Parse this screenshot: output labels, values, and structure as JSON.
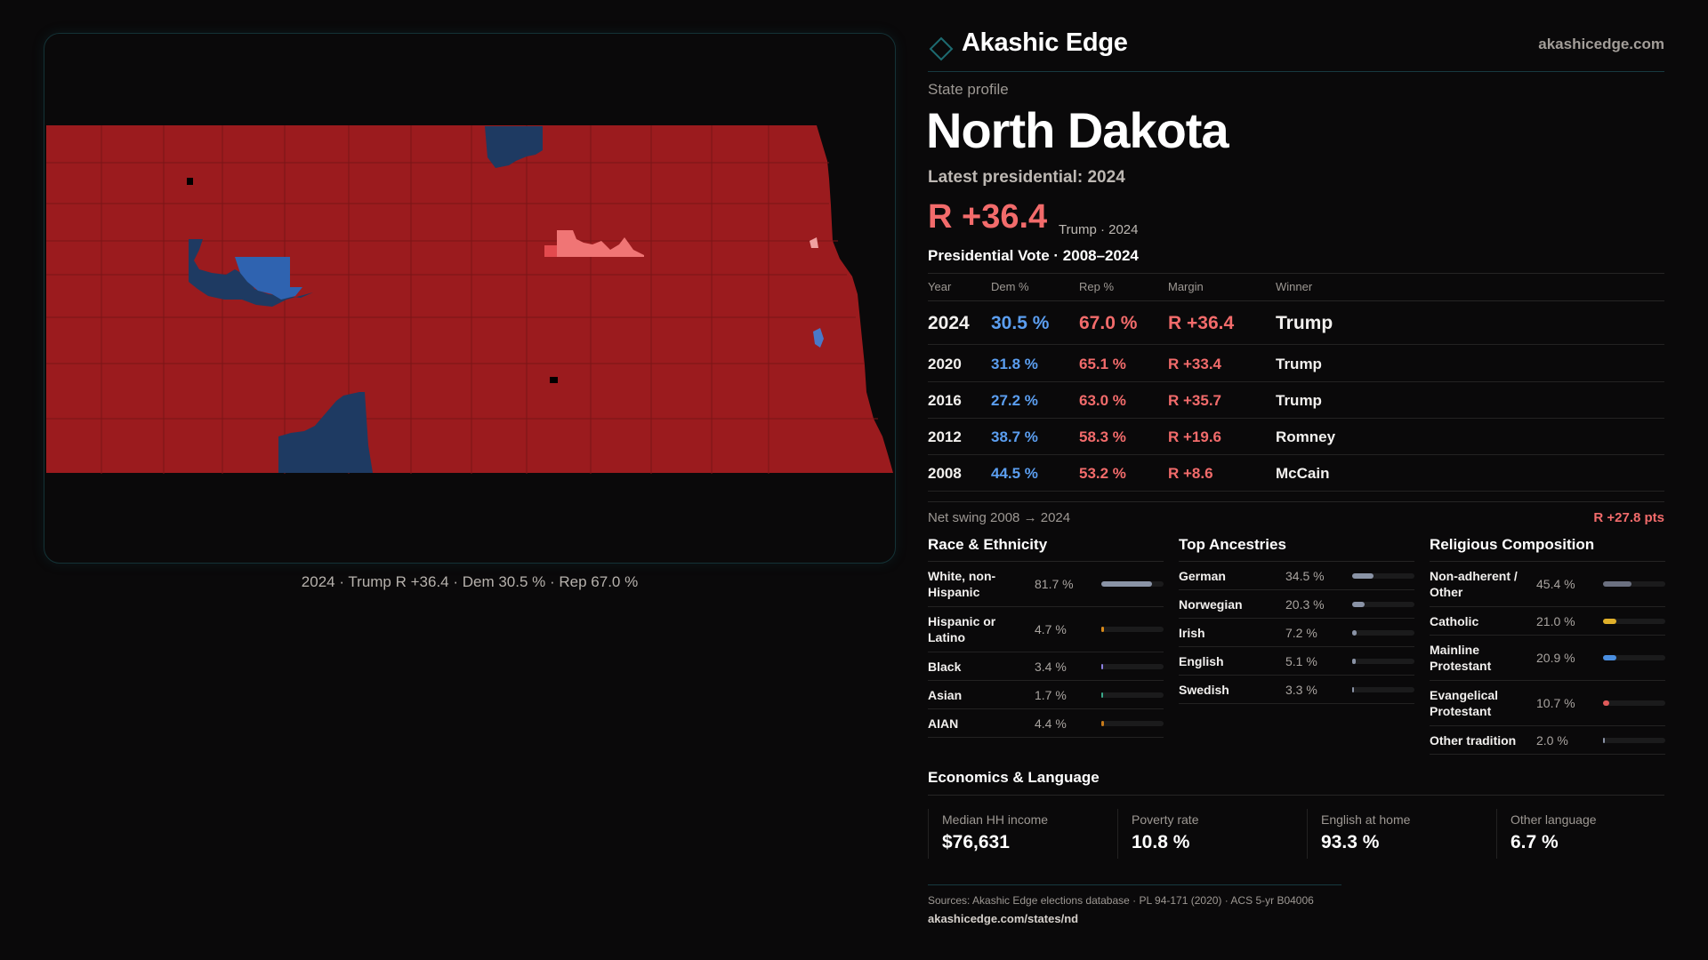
{
  "brand": {
    "name": "Akashic Edge",
    "site": "akashicedge.com",
    "logo_icon": "diamond-icon"
  },
  "map": {
    "caption": "2024 · Trump R +36.4 · Dem 30.5 % · Rep 67.0 %",
    "colors": {
      "rep_strong": "#9b1b1e",
      "rep_lean": "#f07575",
      "dem_strong": "#1e3a62",
      "dem_lean": "#2f63b0"
    }
  },
  "profile": {
    "kicker": "State profile",
    "state": "North Dakota",
    "latest": "Latest presidential: 2024",
    "margin": "R +36.4",
    "margin_sub": "Trump · 2024"
  },
  "votes": {
    "title": "Presidential Vote · 2008–2024",
    "headers": [
      "Year",
      "Dem %",
      "Rep %",
      "Margin",
      "Winner"
    ],
    "rows": [
      {
        "year": "2024",
        "dem": "30.5 %",
        "rep": "67.0 %",
        "margin": "R +36.4",
        "winner": "Trump"
      },
      {
        "year": "2020",
        "dem": "31.8 %",
        "rep": "65.1 %",
        "margin": "R +33.4",
        "winner": "Trump"
      },
      {
        "year": "2016",
        "dem": "27.2 %",
        "rep": "63.0 %",
        "margin": "R +35.7",
        "winner": "Trump"
      },
      {
        "year": "2012",
        "dem": "38.7 %",
        "rep": "58.3 %",
        "margin": "R +19.6",
        "winner": "Romney"
      },
      {
        "year": "2008",
        "dem": "44.5 %",
        "rep": "53.2 %",
        "margin": "R +8.6",
        "winner": "McCain"
      }
    ],
    "swing_label": "Net swing 2008 → 2024",
    "swing_value": "R +27.8 pts"
  },
  "race": {
    "title": "Race & Ethnicity",
    "items": [
      {
        "label": "White, non-Hispanic",
        "value": "81.7 %",
        "pct": 81.7,
        "color": "#8a93a6"
      },
      {
        "label": "Hispanic or Latino",
        "value": "4.7 %",
        "pct": 4.7,
        "color": "#d98a1a"
      },
      {
        "label": "Black",
        "value": "3.4 %",
        "pct": 3.4,
        "color": "#8b7fe0"
      },
      {
        "label": "Asian",
        "value": "1.7 %",
        "pct": 1.7,
        "color": "#3aa88a"
      },
      {
        "label": "AIAN",
        "value": "4.4 %",
        "pct": 4.4,
        "color": "#c67a1a"
      }
    ]
  },
  "ancestry": {
    "title": "Top Ancestries",
    "items": [
      {
        "label": "German",
        "value": "34.5 %",
        "pct": 34.5,
        "color": "#8a93a6"
      },
      {
        "label": "Norwegian",
        "value": "20.3 %",
        "pct": 20.3,
        "color": "#8a93a6"
      },
      {
        "label": "Irish",
        "value": "7.2 %",
        "pct": 7.2,
        "color": "#8a93a6"
      },
      {
        "label": "English",
        "value": "5.1 %",
        "pct": 5.1,
        "color": "#8a93a6"
      },
      {
        "label": "Swedish",
        "value": "3.3 %",
        "pct": 3.3,
        "color": "#8a93a6"
      }
    ]
  },
  "religion": {
    "title": "Religious Composition",
    "items": [
      {
        "label": "Non-adherent / Other",
        "value": "45.4 %",
        "pct": 45.4,
        "color": "#6b7080"
      },
      {
        "label": "Catholic",
        "value": "21.0 %",
        "pct": 21.0,
        "color": "#e0b02a"
      },
      {
        "label": "Mainline Protestant",
        "value": "20.9 %",
        "pct": 20.9,
        "color": "#4a8ee0"
      },
      {
        "label": "Evangelical Protestant",
        "value": "10.7 %",
        "pct": 10.7,
        "color": "#e05a5a"
      },
      {
        "label": "Other tradition",
        "value": "2.0 %",
        "pct": 2.0,
        "color": "#8a93a6"
      }
    ]
  },
  "economics": {
    "title": "Economics & Language",
    "cards": [
      {
        "label": "Median HH income",
        "value": "$76,631"
      },
      {
        "label": "Poverty rate",
        "value": "10.8 %"
      },
      {
        "label": "English at home",
        "value": "93.3 %"
      },
      {
        "label": "Other language",
        "value": "6.7 %"
      }
    ]
  },
  "footer": {
    "sources": "Sources: Akashic Edge elections database · PL 94-171 (2020) · ACS 5-yr B04006",
    "url": "akashicedge.com/states/nd"
  }
}
